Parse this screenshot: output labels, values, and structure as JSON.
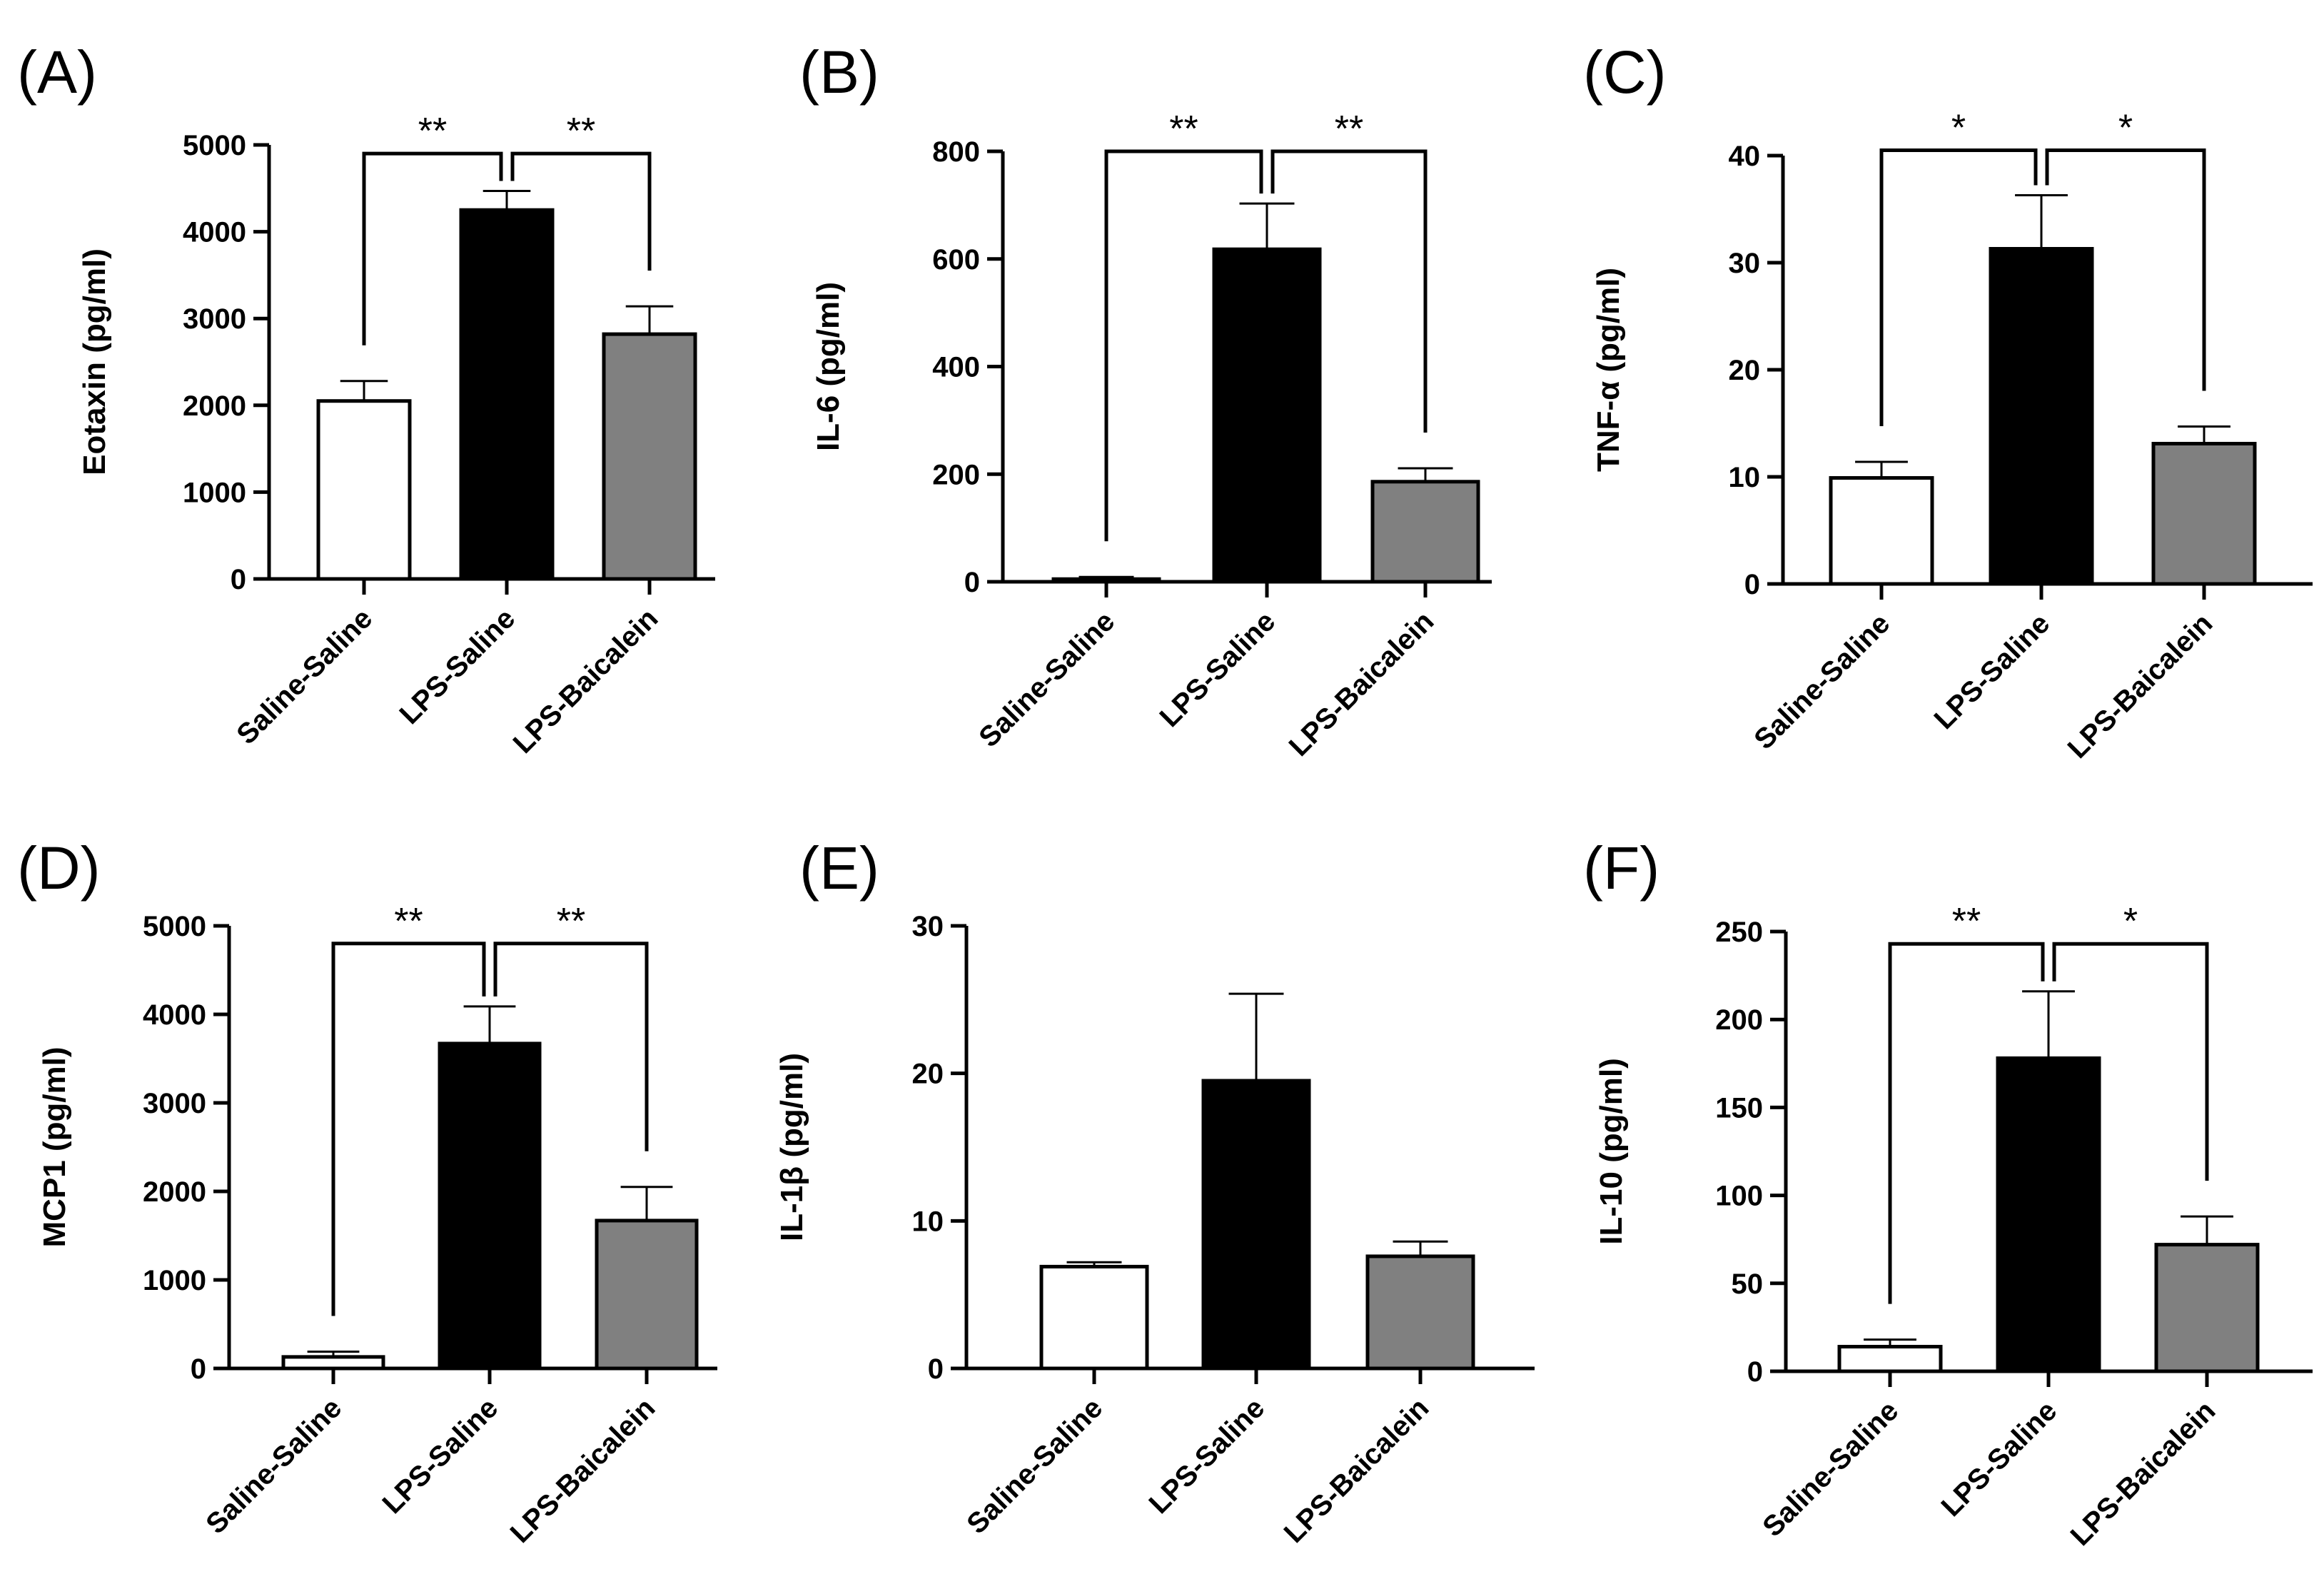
{
  "chart_data": [
    {
      "type": "bar",
      "panel": "(A)",
      "ylabel": "Eotaxin (pg/ml)",
      "yunit_prefix": "",
      "greek": "",
      "yunit_suffix": "",
      "ylim": [
        0,
        5000
      ],
      "yticks": [
        0,
        1000,
        2000,
        3000,
        4000,
        5000
      ],
      "yticks_text": [
        "0",
        "1000",
        "2000",
        "3000",
        "4000",
        "5000"
      ],
      "categories": [
        "Saline-Saline",
        "LPS-Saline",
        "LPS-Baicalein"
      ],
      "values": [
        2050,
        4250,
        2820
      ],
      "errors": [
        230,
        220,
        320
      ],
      "bar_colors": [
        "#ffffff",
        "#000000",
        "#808080"
      ],
      "comparisons": [
        {
          "left": 0,
          "right": 1,
          "label": "**",
          "bracket_y": 4900
        },
        {
          "left": 1,
          "right": 2,
          "label": "**",
          "bracket_y": 4900
        }
      ]
    },
    {
      "type": "bar",
      "panel": "(B)",
      "ylabel": "IL-6 (pg/ml)",
      "ylim": [
        0,
        800
      ],
      "yticks": [
        0,
        200,
        400,
        600,
        800
      ],
      "yticks_text": [
        "0",
        "200",
        "400",
        "600",
        "800"
      ],
      "categories": [
        "Saline-Saline",
        "LPS-Saline",
        "LPS-Baicalein"
      ],
      "values": [
        5,
        618,
        186
      ],
      "errors": [
        4,
        85,
        25
      ],
      "bar_colors": [
        "#ffffff",
        "#000000",
        "#808080"
      ],
      "comparisons": [
        {
          "left": 0,
          "right": 1,
          "label": "**",
          "bracket_y": 800
        },
        {
          "left": 1,
          "right": 2,
          "label": "**",
          "bracket_y": 800
        }
      ]
    },
    {
      "type": "bar",
      "panel": "(C)",
      "ylabel": "TNF-α (pg/ml)",
      "ylim": [
        0,
        40
      ],
      "yticks": [
        0,
        10,
        20,
        30,
        40
      ],
      "yticks_text": [
        "0",
        "10",
        "20",
        "30",
        "40"
      ],
      "categories": [
        "Saline-Saline",
        "LPS-Saline",
        "LPS-Baicalein"
      ],
      "values": [
        9.9,
        31.3,
        13.1
      ],
      "errors": [
        1.5,
        5.0,
        1.6
      ],
      "bar_colors": [
        "#ffffff",
        "#000000",
        "#808080"
      ],
      "comparisons": [
        {
          "left": 0,
          "right": 1,
          "label": "*",
          "bracket_y": 40.5
        },
        {
          "left": 1,
          "right": 2,
          "label": "*",
          "bracket_y": 40.5
        }
      ]
    },
    {
      "type": "bar",
      "panel": "(D)",
      "ylabel": "MCP1 (pg/ml)",
      "ylim": [
        0,
        5000
      ],
      "yticks": [
        0,
        1000,
        2000,
        3000,
        4000,
        5000
      ],
      "yticks_text": [
        "0",
        "1000",
        "2000",
        "3000",
        "4000",
        "5000"
      ],
      "categories": [
        "Saline-Saline",
        "LPS-Saline",
        "LPS-Baicalein"
      ],
      "values": [
        130,
        3670,
        1670
      ],
      "errors": [
        60,
        420,
        380
      ],
      "bar_colors": [
        "#ffffff",
        "#000000",
        "#808080"
      ],
      "comparisons": [
        {
          "left": 0,
          "right": 1,
          "label": "**",
          "bracket_y": 4800
        },
        {
          "left": 1,
          "right": 2,
          "label": "**",
          "bracket_y": 4800
        }
      ]
    },
    {
      "type": "bar",
      "panel": "(E)",
      "ylabel": "IL-1β (pg/ml)",
      "ylim": [
        0,
        30
      ],
      "yticks": [
        0,
        10,
        20,
        30
      ],
      "yticks_text": [
        "0",
        "10",
        "20",
        "30"
      ],
      "categories": [
        "Saline-Saline",
        "LPS-Saline",
        "LPS-Baicalein"
      ],
      "values": [
        6.9,
        19.5,
        7.6
      ],
      "errors": [
        0.3,
        5.9,
        1.0
      ],
      "bar_colors": [
        "#ffffff",
        "#000000",
        "#808080"
      ],
      "comparisons": []
    },
    {
      "type": "bar",
      "panel": "(F)",
      "ylabel": "IL-10 (pg/ml)",
      "ylim": [
        0,
        250
      ],
      "yticks": [
        0,
        50,
        100,
        150,
        200,
        250
      ],
      "yticks_text": [
        "0",
        "50",
        "100",
        "150",
        "200",
        "250"
      ],
      "categories": [
        "Saline-Saline",
        "LPS-Saline",
        "LPS-Baicalein"
      ],
      "values": [
        14,
        178,
        72
      ],
      "errors": [
        4,
        38,
        16
      ],
      "bar_colors": [
        "#ffffff",
        "#000000",
        "#808080"
      ],
      "comparisons": [
        {
          "left": 0,
          "right": 1,
          "label": "**",
          "bracket_y": 243
        },
        {
          "left": 1,
          "right": 2,
          "label": "*",
          "bracket_y": 243
        }
      ]
    }
  ]
}
